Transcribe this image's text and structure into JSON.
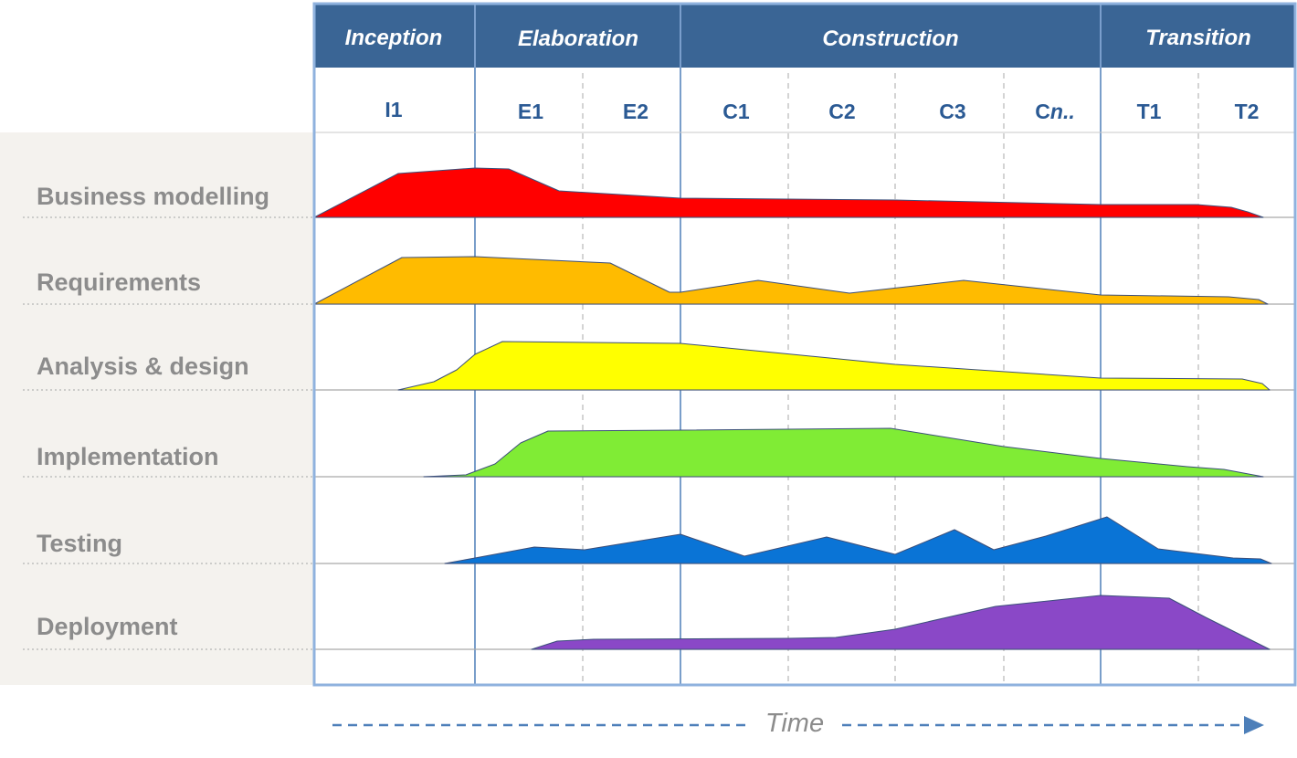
{
  "phases": [
    {
      "label": "Inception"
    },
    {
      "label": "Elaboration"
    },
    {
      "label": "Construction"
    },
    {
      "label": "Transition"
    }
  ],
  "iterations": [
    {
      "label": "I1"
    },
    {
      "label": "E1"
    },
    {
      "label": "E2"
    },
    {
      "label": "C1"
    },
    {
      "label": "C2"
    },
    {
      "label": "C3"
    },
    {
      "label": "Cn.."
    },
    {
      "label": "T1"
    },
    {
      "label": "T2"
    }
  ],
  "disciplines": [
    {
      "label": "Business modelling",
      "color": "#ff0000"
    },
    {
      "label": "Requirements",
      "color": "#ffbb00"
    },
    {
      "label": "Analysis & design",
      "color": "#ffff00"
    },
    {
      "label": "Implementation",
      "color": "#80ec35"
    },
    {
      "label": "Testing",
      "color": "#0a74d6"
    },
    {
      "label": "Deployment",
      "color": "#8a48c7"
    }
  ],
  "time_axis": {
    "label": "Time"
  },
  "colors": {
    "phase_header": "#3a6595",
    "frame": "#8fb2de",
    "left_panel": "#f4f2ee",
    "iteration_text": "#2b5a94",
    "discipline_text": "#8c8c8c",
    "arrow": "#4d7fb9"
  }
}
